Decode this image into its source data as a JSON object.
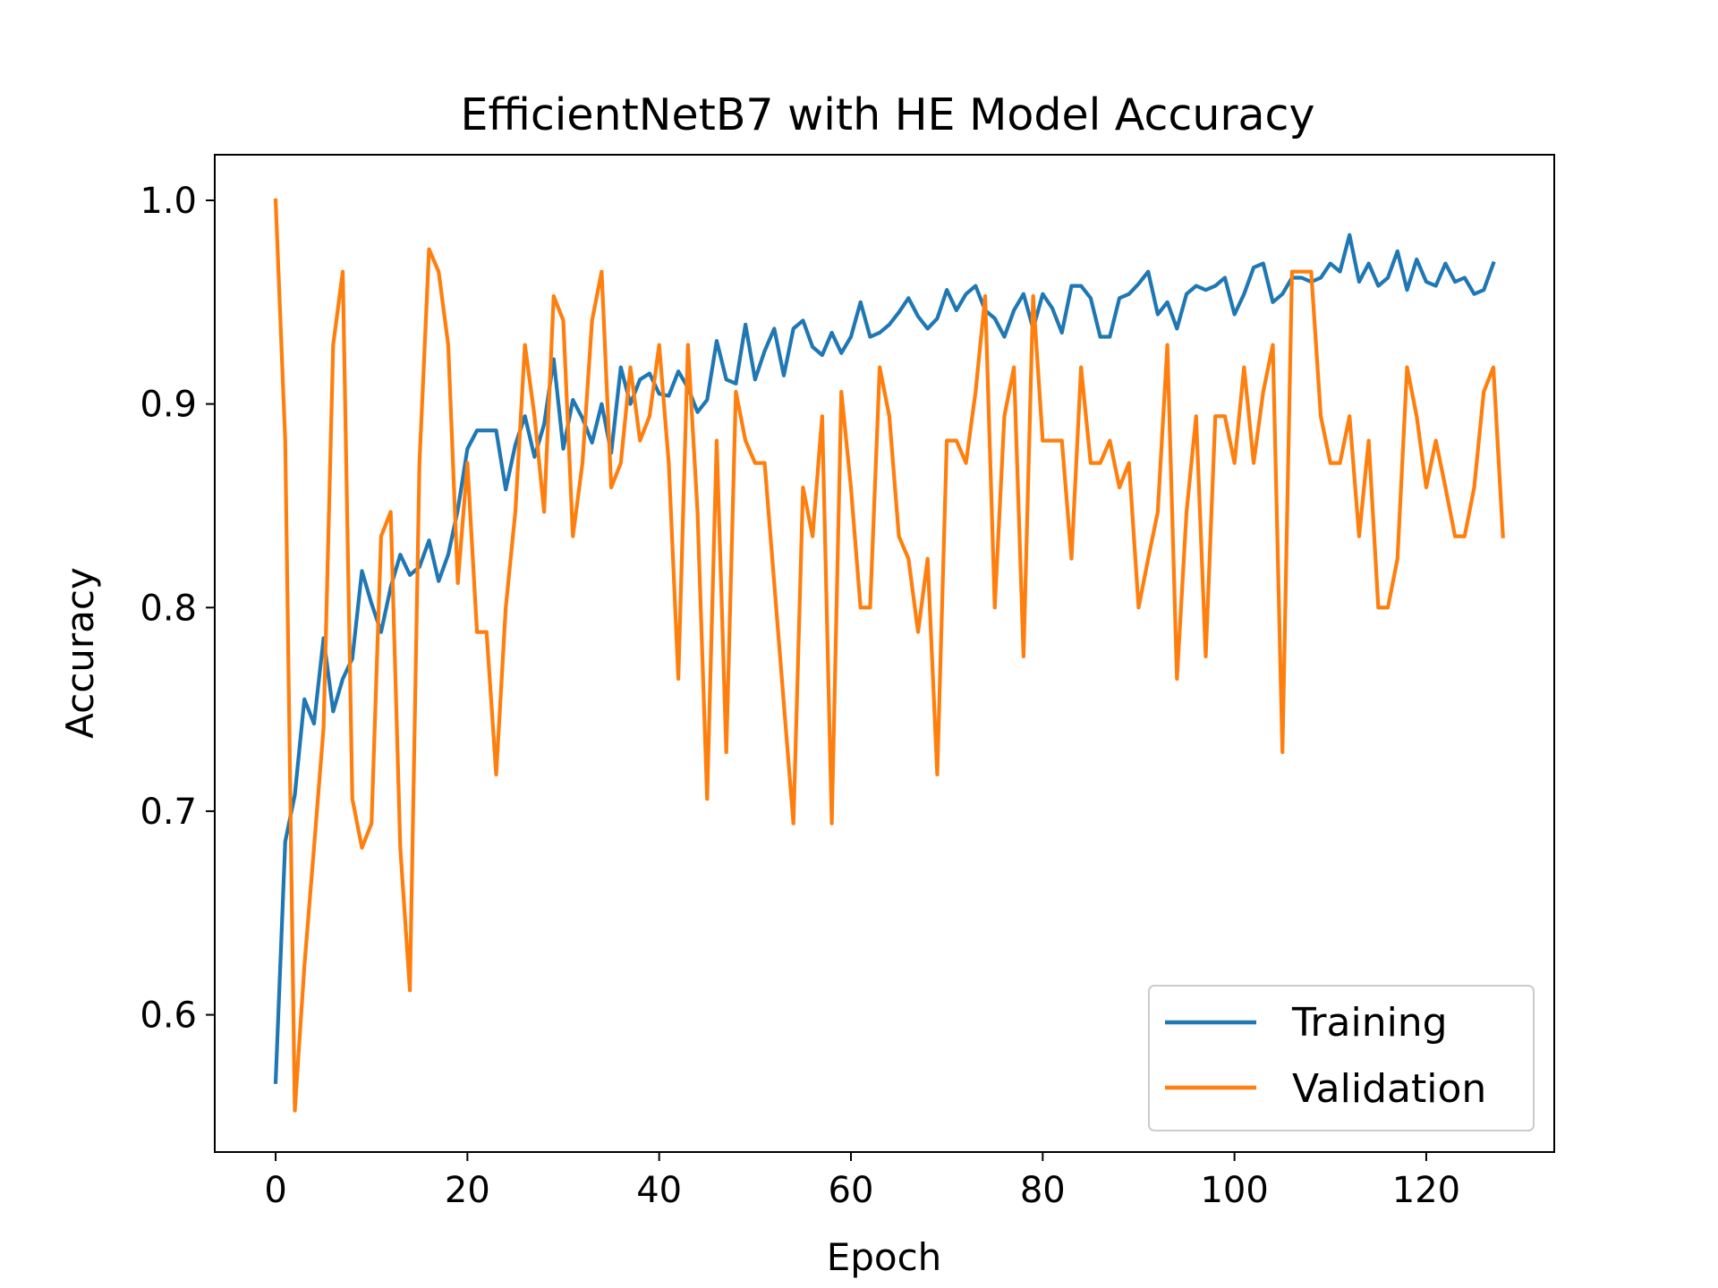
{
  "chart_data": {
    "type": "line",
    "title": "EfficientNetB7 with HE Model Accuracy",
    "xlabel": "Epoch",
    "ylabel": "Accuracy",
    "xlim": [
      -6.35,
      133.35
    ],
    "ylim": [
      0.5326,
      1.0224
    ],
    "xticks": [
      0,
      20,
      40,
      60,
      80,
      100,
      120
    ],
    "yticks": [
      0.6,
      0.7,
      0.8,
      0.9,
      1.0
    ],
    "xtick_labels": [
      "0",
      "20",
      "40",
      "60",
      "80",
      "100",
      "120"
    ],
    "ytick_labels": [
      "0.6",
      "0.7",
      "0.8",
      "0.9",
      "1.0"
    ],
    "grid": false,
    "legend_position": "bottom-right",
    "series": [
      {
        "name": "Training",
        "color": "#1f77b4",
        "values": [
          0.567,
          0.685,
          0.708,
          0.755,
          0.743,
          0.785,
          0.749,
          0.765,
          0.775,
          0.818,
          0.802,
          0.788,
          0.81,
          0.826,
          0.816,
          0.82,
          0.833,
          0.813,
          0.826,
          0.848,
          0.878,
          0.887,
          0.887,
          0.887,
          0.858,
          0.88,
          0.894,
          0.874,
          0.89,
          0.922,
          0.878,
          0.902,
          0.893,
          0.881,
          0.9,
          0.876,
          0.918,
          0.9,
          0.912,
          0.915,
          0.905,
          0.904,
          0.916,
          0.908,
          0.896,
          0.902,
          0.931,
          0.912,
          0.91,
          0.939,
          0.912,
          0.926,
          0.937,
          0.914,
          0.937,
          0.941,
          0.928,
          0.924,
          0.935,
          0.925,
          0.933,
          0.95,
          0.933,
          0.935,
          0.939,
          0.945,
          0.952,
          0.943,
          0.937,
          0.942,
          0.956,
          0.946,
          0.954,
          0.958,
          0.946,
          0.942,
          0.933,
          0.946,
          0.954,
          0.937,
          0.954,
          0.947,
          0.935,
          0.958,
          0.958,
          0.952,
          0.933,
          0.933,
          0.952,
          0.954,
          0.959,
          0.965,
          0.944,
          0.95,
          0.937,
          0.954,
          0.958,
          0.956,
          0.958,
          0.962,
          0.944,
          0.954,
          0.967,
          0.969,
          0.95,
          0.954,
          0.962,
          0.962,
          0.96,
          0.962,
          0.969,
          0.965,
          0.983,
          0.96,
          0.969,
          0.958,
          0.962,
          0.975,
          0.956,
          0.971,
          0.96,
          0.958,
          0.969,
          0.96,
          0.962,
          0.954,
          0.956,
          0.969
        ]
      },
      {
        "name": "Validation",
        "color": "#ff7f0e",
        "values": [
          1.0,
          0.882,
          0.553,
          0.624,
          0.682,
          0.741,
          0.929,
          0.965,
          0.706,
          0.682,
          0.694,
          0.835,
          0.847,
          0.682,
          0.612,
          0.871,
          0.976,
          0.965,
          0.929,
          0.812,
          0.871,
          0.788,
          0.788,
          0.718,
          0.8,
          0.847,
          0.929,
          0.894,
          0.847,
          0.953,
          0.941,
          0.835,
          0.871,
          0.941,
          0.965,
          0.859,
          0.871,
          0.918,
          0.882,
          0.894,
          0.929,
          0.871,
          0.765,
          0.929,
          0.847,
          0.706,
          0.882,
          0.729,
          0.906,
          0.882,
          0.871,
          0.871,
          0.812,
          0.753,
          0.694,
          0.859,
          0.835,
          0.894,
          0.694,
          0.906,
          0.859,
          0.8,
          0.8,
          0.918,
          0.894,
          0.835,
          0.824,
          0.788,
          0.824,
          0.718,
          0.882,
          0.882,
          0.871,
          0.906,
          0.953,
          0.8,
          0.894,
          0.918,
          0.776,
          0.953,
          0.882,
          0.882,
          0.882,
          0.824,
          0.918,
          0.871,
          0.871,
          0.882,
          0.859,
          0.871,
          0.8,
          0.824,
          0.847,
          0.929,
          0.765,
          0.847,
          0.894,
          0.776,
          0.894,
          0.894,
          0.871,
          0.918,
          0.871,
          0.906,
          0.929,
          0.729,
          0.965,
          0.965,
          0.965,
          0.894,
          0.871,
          0.871,
          0.894,
          0.835,
          0.882,
          0.8,
          0.8,
          0.824,
          0.918,
          0.894,
          0.859,
          0.882,
          0.859,
          0.835,
          0.835,
          0.859,
          0.906,
          0.918,
          0.835
        ]
      }
    ]
  }
}
